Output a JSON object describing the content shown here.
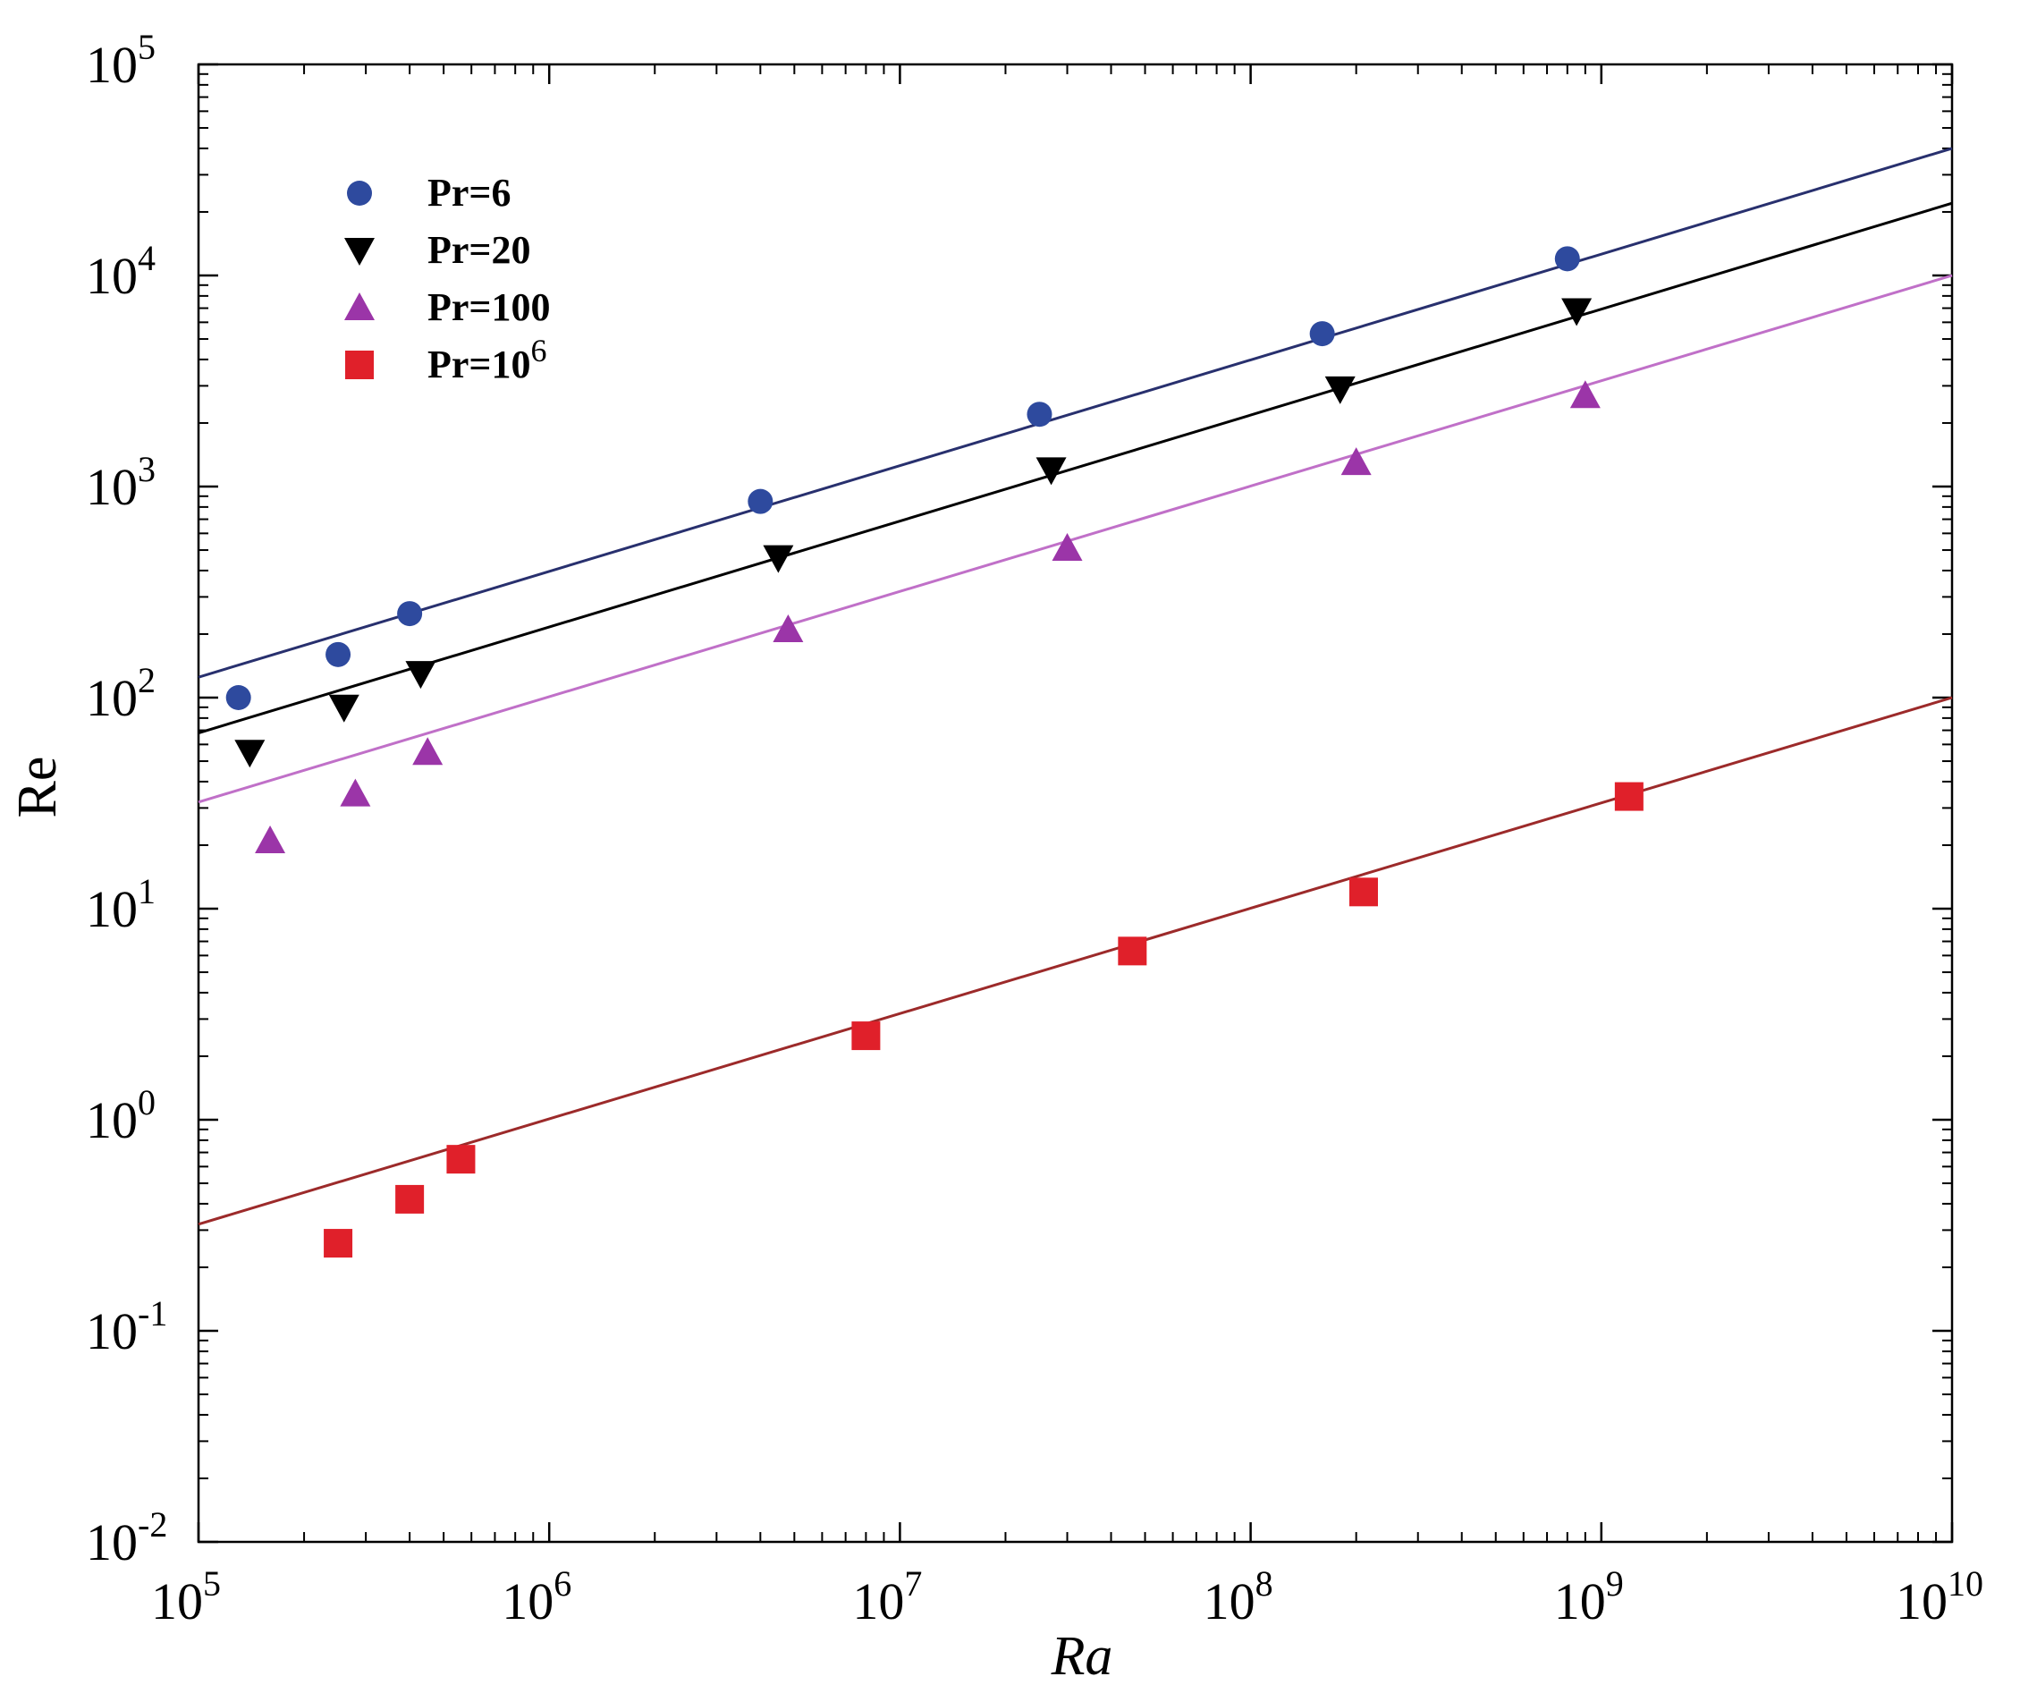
{
  "chart_data": {
    "type": "scatter",
    "xscale": "log",
    "yscale": "log",
    "xlim": [
      100000,
      10000000000
    ],
    "ylim": [
      0.01,
      100000
    ],
    "xlabel": "Ra",
    "ylabel": "Re",
    "x_ticks": [
      {
        "value": 100000,
        "base": "10",
        "exp": "5"
      },
      {
        "value": 1000000,
        "base": "10",
        "exp": "6"
      },
      {
        "value": 10000000,
        "base": "10",
        "exp": "7"
      },
      {
        "value": 100000000,
        "base": "10",
        "exp": "8"
      },
      {
        "value": 1000000000,
        "base": "10",
        "exp": "9"
      },
      {
        "value": 10000000000,
        "base": "10",
        "exp": "10"
      }
    ],
    "y_ticks": [
      {
        "value": 0.01,
        "base": "10",
        "exp": "-2"
      },
      {
        "value": 0.1,
        "base": "10",
        "exp": "-1"
      },
      {
        "value": 1,
        "base": "10",
        "exp": "0"
      },
      {
        "value": 10,
        "base": "10",
        "exp": "1"
      },
      {
        "value": 100,
        "base": "10",
        "exp": "2"
      },
      {
        "value": 1000,
        "base": "10",
        "exp": "3"
      },
      {
        "value": 10000,
        "base": "10",
        "exp": "4"
      },
      {
        "value": 100000,
        "base": "10",
        "exp": "5"
      }
    ],
    "legend_position": "top-left",
    "series": [
      {
        "name": "Pr=6",
        "label_main": "Pr=",
        "label_sup": "",
        "label_rest": "6",
        "marker": "circle",
        "color": "#2e4a9e",
        "line_color": "#28306e",
        "x": [
          130000,
          250000,
          400000,
          4000000,
          25000000,
          160000000,
          800000000
        ],
        "y": [
          100,
          160,
          250,
          850,
          2200,
          5300,
          12000
        ],
        "fit": {
          "x": [
            100000,
            10000000000
          ],
          "y": [
            125,
            40000
          ]
        }
      },
      {
        "name": "Pr=20",
        "label_main": "Pr=",
        "label_sup": "",
        "label_rest": "20",
        "marker": "triangle-down",
        "color": "#000000",
        "line_color": "#000000",
        "x": [
          140000,
          260000,
          430000,
          4500000,
          27000000,
          180000000,
          850000000
        ],
        "y": [
          55,
          90,
          130,
          460,
          1200,
          2900,
          6800
        ],
        "fit": {
          "x": [
            100000,
            10000000000
          ],
          "y": [
            68,
            22000
          ]
        }
      },
      {
        "name": "Pr=100",
        "label_main": "Pr=",
        "label_sup": "",
        "label_rest": "100",
        "marker": "triangle-up",
        "color": "#9b35a8",
        "line_color": "#c070c8",
        "x": [
          160000,
          280000,
          450000,
          4800000,
          30000000,
          200000000,
          900000000
        ],
        "y": [
          21,
          35,
          55,
          210,
          510,
          1300,
          2700
        ],
        "fit": {
          "x": [
            100000,
            10000000000
          ],
          "y": [
            32,
            10000
          ]
        }
      },
      {
        "name": "Pr=10^6",
        "label_main": "Pr=10",
        "label_sup": "6",
        "label_rest": "",
        "marker": "square",
        "color": "#e0202a",
        "line_color": "#9c2a2a",
        "x": [
          250000,
          400000,
          560000,
          8000000,
          46000000,
          210000000,
          1200000000
        ],
        "y": [
          0.26,
          0.42,
          0.65,
          2.5,
          6.3,
          12,
          34
        ],
        "fit": {
          "x": [
            100000,
            10000000000
          ],
          "y": [
            0.32,
            100
          ]
        }
      }
    ]
  }
}
